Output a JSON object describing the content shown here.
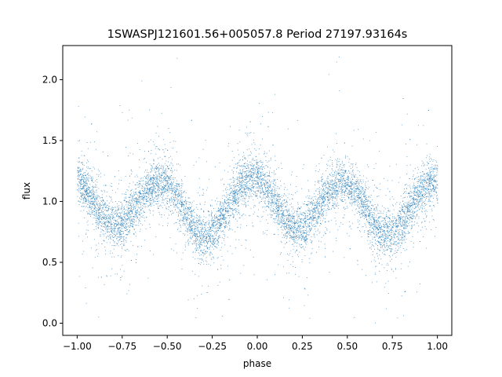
{
  "chart_data": {
    "type": "scatter",
    "title": "1SWASPJ121601.56+005057.8 Period 27197.93164s",
    "xlabel": "phase",
    "ylabel": "flux",
    "xlim": [
      -1.08,
      1.08
    ],
    "ylim": [
      -0.1,
      2.28
    ],
    "x_ticks": [
      -1.0,
      -0.75,
      -0.5,
      -0.25,
      0.0,
      0.25,
      0.5,
      0.75,
      1.0
    ],
    "x_tick_labels": [
      "−1.00",
      "−0.75",
      "−0.50",
      "−0.25",
      "0.00",
      "0.25",
      "0.50",
      "0.75",
      "1.00"
    ],
    "y_ticks": [
      0.0,
      0.5,
      1.0,
      1.5,
      2.0
    ],
    "y_tick_labels": [
      "0.0",
      "0.5",
      "1.0",
      "1.5",
      "2.0"
    ],
    "grid": false,
    "point_color": "#1f77b4",
    "series": [
      {
        "phase": [
          -1.0,
          -0.95,
          -0.9,
          -0.85,
          -0.8,
          -0.75,
          -0.7,
          -0.65,
          -0.6,
          -0.55,
          -0.5,
          -0.45,
          -0.4,
          -0.35,
          -0.3,
          -0.25,
          -0.2,
          -0.15,
          -0.1,
          -0.05,
          0.0,
          0.05,
          0.1,
          0.15,
          0.2,
          0.25,
          0.3,
          0.35,
          0.4,
          0.45,
          0.5,
          0.55,
          0.6,
          0.65,
          0.7,
          0.75,
          0.8,
          0.85,
          0.9,
          0.95,
          1.0
        ],
        "flux": [
          1.18,
          1.1,
          0.98,
          0.86,
          0.8,
          0.82,
          0.92,
          1.03,
          1.12,
          1.16,
          1.13,
          1.04,
          0.9,
          0.77,
          0.7,
          0.74,
          0.86,
          1.0,
          1.12,
          1.19,
          1.19,
          1.12,
          0.99,
          0.85,
          0.78,
          0.79,
          0.88,
          0.99,
          1.09,
          1.14,
          1.13,
          1.06,
          0.94,
          0.8,
          0.72,
          0.73,
          0.83,
          0.96,
          1.08,
          1.15,
          1.18
        ]
      }
    ]
  }
}
